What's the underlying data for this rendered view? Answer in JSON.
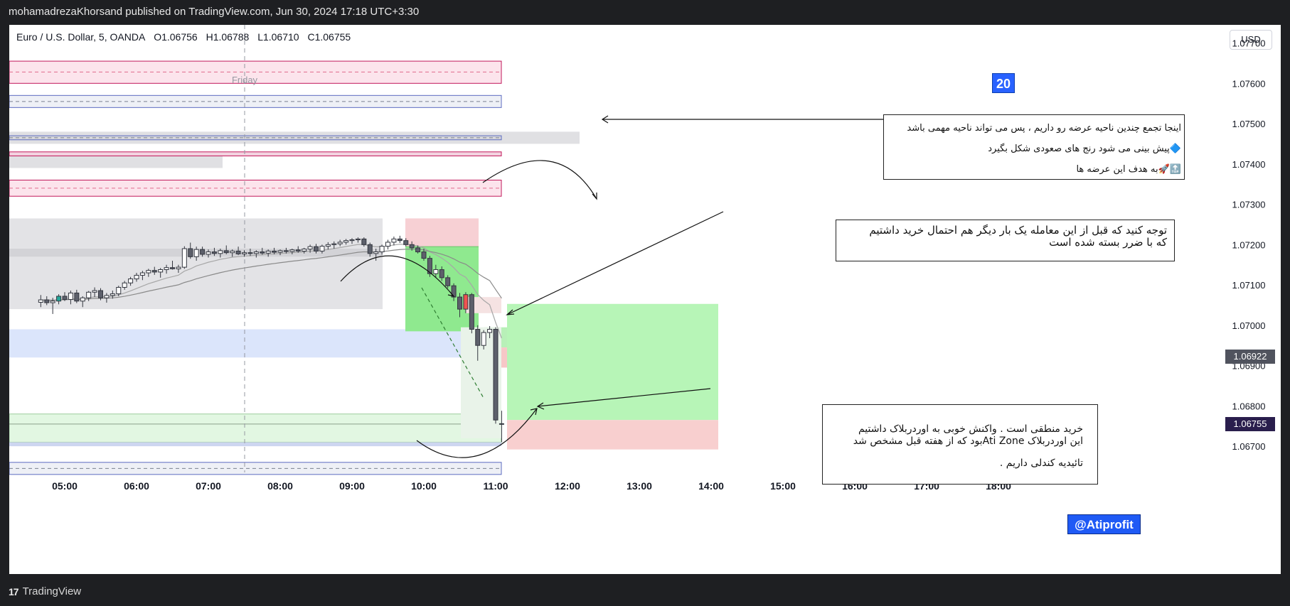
{
  "page": {
    "publish_info": "mohamadrezaKhorsand published on TradingView.com, Jun 30, 2024 17:18 UTC+3:30",
    "brand": "TradingView"
  },
  "symbol": {
    "name": "Euro / U.S. Dollar, 5, OANDA",
    "open": "O1.06756",
    "high": "H1.06788",
    "low": "L1.06710",
    "close": "C1.06755",
    "currency": "USD"
  },
  "annotations": {
    "day_label": "Friday",
    "badge_number": "20",
    "author_tag": "@Atiprofit",
    "note1": {
      "line1": "اینجا تجمع چندین ناحیه عرضه رو داریم ، پس می تواند ناحیه مهمی باشد",
      "line2": "🔷پیش بینی می شود رنج های صعودی شکل بگیرد",
      "line3": "🔝🚀به هدف این عرضه ها"
    },
    "note2": {
      "line1": "توجه کنید که  قبل از این معامله یک بار دیگر  هم احتمال خرید داشتیم",
      "line2": "که با ضرر  بسته شده است"
    },
    "note3": {
      "line1": "خرید منطقی است . واکنش خوبی به اوردربلاک داشتیم",
      "line2": "این اوردربلاک Ati Zoneبود که از  هفته قبل مشخص شد",
      "line3": "تائیدیه کندلی داریم ."
    }
  },
  "chart_data": {
    "type": "candlestick",
    "symbol": "EUR/USD",
    "timeframe": "5",
    "x_ticks": [
      "05:00",
      "06:00",
      "07:00",
      "08:00",
      "09:00",
      "10:00",
      "11:00",
      "12:00",
      "13:00",
      "14:00",
      "15:00",
      "16:00",
      "17:00",
      "18:00"
    ],
    "y_ticks": [
      "1.07700",
      "1.07600",
      "1.07500",
      "1.07400",
      "1.07300",
      "1.07200",
      "1.07100",
      "1.07000",
      "1.06900",
      "1.06800",
      "1.06700"
    ],
    "ylim": [
      1.06635,
      1.07745
    ],
    "last_price": "1.06755",
    "marked_price": "1.06922",
    "colors": {
      "up": "#ffffff",
      "down": "#5d606b",
      "up_special": "#26a69a",
      "down_special": "#ef5350",
      "long_profit": "#a5f2a5",
      "long_loss": "#f7c7c7"
    },
    "candles": [
      {
        "t": "04:40",
        "o": 1.07057,
        "h": 1.07075,
        "l": 1.07045,
        "c": 1.07063
      },
      {
        "t": "04:45",
        "o": 1.07063,
        "h": 1.07072,
        "l": 1.0705,
        "c": 1.07056
      },
      {
        "t": "04:50",
        "o": 1.07056,
        "h": 1.07068,
        "l": 1.07028,
        "c": 1.0706
      },
      {
        "t": "04:55",
        "o": 1.0706,
        "h": 1.07077,
        "l": 1.07052,
        "c": 1.07072
      },
      {
        "t": "05:00",
        "o": 1.07072,
        "h": 1.07082,
        "l": 1.0706,
        "c": 1.07064
      },
      {
        "t": "05:05",
        "o": 1.07064,
        "h": 1.07086,
        "l": 1.07052,
        "c": 1.0708
      },
      {
        "t": "05:10",
        "o": 1.0708,
        "h": 1.07088,
        "l": 1.07055,
        "c": 1.0706
      },
      {
        "t": "05:15",
        "o": 1.0706,
        "h": 1.07072,
        "l": 1.07045,
        "c": 1.07068
      },
      {
        "t": "05:20",
        "o": 1.07068,
        "h": 1.07085,
        "l": 1.0706,
        "c": 1.07082
      },
      {
        "t": "05:25",
        "o": 1.07082,
        "h": 1.07094,
        "l": 1.0707,
        "c": 1.07086
      },
      {
        "t": "05:30",
        "o": 1.07086,
        "h": 1.07092,
        "l": 1.07062,
        "c": 1.07068
      },
      {
        "t": "05:35",
        "o": 1.07068,
        "h": 1.0708,
        "l": 1.07056,
        "c": 1.07074
      },
      {
        "t": "05:40",
        "o": 1.07074,
        "h": 1.07086,
        "l": 1.07066,
        "c": 1.07078
      },
      {
        "t": "05:45",
        "o": 1.07078,
        "h": 1.07098,
        "l": 1.07072,
        "c": 1.07094
      },
      {
        "t": "05:50",
        "o": 1.07094,
        "h": 1.0711,
        "l": 1.07088,
        "c": 1.07105
      },
      {
        "t": "05:55",
        "o": 1.07105,
        "h": 1.0712,
        "l": 1.07098,
        "c": 1.07115
      },
      {
        "t": "06:00",
        "o": 1.07115,
        "h": 1.0713,
        "l": 1.07108,
        "c": 1.07124
      },
      {
        "t": "06:05",
        "o": 1.07124,
        "h": 1.07135,
        "l": 1.07112,
        "c": 1.0713
      },
      {
        "t": "06:10",
        "o": 1.0713,
        "h": 1.0714,
        "l": 1.0712,
        "c": 1.07136
      },
      {
        "t": "06:15",
        "o": 1.07136,
        "h": 1.07145,
        "l": 1.07125,
        "c": 1.07132
      },
      {
        "t": "06:20",
        "o": 1.07132,
        "h": 1.07142,
        "l": 1.07118,
        "c": 1.07138
      },
      {
        "t": "06:25",
        "o": 1.07138,
        "h": 1.0715,
        "l": 1.07128,
        "c": 1.07143
      },
      {
        "t": "06:30",
        "o": 1.07143,
        "h": 1.0716,
        "l": 1.07138,
        "c": 1.0714
      },
      {
        "t": "06:35",
        "o": 1.0714,
        "h": 1.0715,
        "l": 1.0713,
        "c": 1.07144
      },
      {
        "t": "06:40",
        "o": 1.07144,
        "h": 1.07196,
        "l": 1.0714,
        "c": 1.0719
      },
      {
        "t": "06:45",
        "o": 1.0719,
        "h": 1.07205,
        "l": 1.07165,
        "c": 1.0717
      },
      {
        "t": "06:50",
        "o": 1.0717,
        "h": 1.07195,
        "l": 1.0716,
        "c": 1.07188
      },
      {
        "t": "06:55",
        "o": 1.07188,
        "h": 1.07195,
        "l": 1.0717,
        "c": 1.07176
      },
      {
        "t": "07:00",
        "o": 1.07176,
        "h": 1.07188,
        "l": 1.07168,
        "c": 1.07182
      },
      {
        "t": "07:05",
        "o": 1.07182,
        "h": 1.07192,
        "l": 1.07172,
        "c": 1.07178
      },
      {
        "t": "07:10",
        "o": 1.07178,
        "h": 1.0719,
        "l": 1.07168,
        "c": 1.07185
      },
      {
        "t": "07:15",
        "o": 1.07185,
        "h": 1.07198,
        "l": 1.07176,
        "c": 1.0718
      },
      {
        "t": "07:20",
        "o": 1.0718,
        "h": 1.07188,
        "l": 1.0717,
        "c": 1.07184
      },
      {
        "t": "07:25",
        "o": 1.07184,
        "h": 1.07195,
        "l": 1.07174,
        "c": 1.07177
      },
      {
        "t": "07:30",
        "o": 1.07177,
        "h": 1.07186,
        "l": 1.0717,
        "c": 1.0718
      },
      {
        "t": "07:35",
        "o": 1.0718,
        "h": 1.0719,
        "l": 1.07172,
        "c": 1.07178
      },
      {
        "t": "07:40",
        "o": 1.07178,
        "h": 1.07186,
        "l": 1.07168,
        "c": 1.07182
      },
      {
        "t": "07:45",
        "o": 1.07182,
        "h": 1.07192,
        "l": 1.07175,
        "c": 1.07179
      },
      {
        "t": "07:50",
        "o": 1.07179,
        "h": 1.07188,
        "l": 1.0717,
        "c": 1.07184
      },
      {
        "t": "07:55",
        "o": 1.07184,
        "h": 1.07192,
        "l": 1.07176,
        "c": 1.07181
      },
      {
        "t": "08:00",
        "o": 1.07181,
        "h": 1.07188,
        "l": 1.07174,
        "c": 1.07185
      },
      {
        "t": "08:05",
        "o": 1.07185,
        "h": 1.07192,
        "l": 1.07178,
        "c": 1.07183
      },
      {
        "t": "08:10",
        "o": 1.07183,
        "h": 1.0719,
        "l": 1.07176,
        "c": 1.07187
      },
      {
        "t": "08:15",
        "o": 1.07187,
        "h": 1.07196,
        "l": 1.0718,
        "c": 1.07184
      },
      {
        "t": "08:20",
        "o": 1.07184,
        "h": 1.07192,
        "l": 1.07178,
        "c": 1.07189
      },
      {
        "t": "08:25",
        "o": 1.07189,
        "h": 1.072,
        "l": 1.0718,
        "c": 1.07195
      },
      {
        "t": "08:30",
        "o": 1.07195,
        "h": 1.07202,
        "l": 1.07178,
        "c": 1.07184
      },
      {
        "t": "08:35",
        "o": 1.07184,
        "h": 1.072,
        "l": 1.07178,
        "c": 1.07196
      },
      {
        "t": "08:40",
        "o": 1.07196,
        "h": 1.07206,
        "l": 1.07188,
        "c": 1.072
      },
      {
        "t": "08:45",
        "o": 1.072,
        "h": 1.07208,
        "l": 1.0719,
        "c": 1.07202
      },
      {
        "t": "08:50",
        "o": 1.07202,
        "h": 1.07212,
        "l": 1.07196,
        "c": 1.07206
      },
      {
        "t": "08:55",
        "o": 1.07206,
        "h": 1.07214,
        "l": 1.072,
        "c": 1.0721
      },
      {
        "t": "09:00",
        "o": 1.0721,
        "h": 1.07216,
        "l": 1.07202,
        "c": 1.07212
      },
      {
        "t": "09:05",
        "o": 1.07212,
        "h": 1.07218,
        "l": 1.07205,
        "c": 1.07214
      },
      {
        "t": "09:10",
        "o": 1.07214,
        "h": 1.07218,
        "l": 1.07195,
        "c": 1.072
      },
      {
        "t": "09:15",
        "o": 1.072,
        "h": 1.07205,
        "l": 1.0717,
        "c": 1.07178
      },
      {
        "t": "09:20",
        "o": 1.07178,
        "h": 1.0719,
        "l": 1.0716,
        "c": 1.07182
      },
      {
        "t": "09:25",
        "o": 1.07182,
        "h": 1.072,
        "l": 1.07175,
        "c": 1.07196
      },
      {
        "t": "09:30",
        "o": 1.07196,
        "h": 1.07212,
        "l": 1.07188,
        "c": 1.07206
      },
      {
        "t": "09:35",
        "o": 1.07206,
        "h": 1.0722,
        "l": 1.07198,
        "c": 1.07214
      },
      {
        "t": "09:40",
        "o": 1.07214,
        "h": 1.07222,
        "l": 1.07204,
        "c": 1.0721
      },
      {
        "t": "09:45",
        "o": 1.0721,
        "h": 1.07216,
        "l": 1.07196,
        "c": 1.072
      },
      {
        "t": "09:50",
        "o": 1.072,
        "h": 1.07208,
        "l": 1.07185,
        "c": 1.07192
      },
      {
        "t": "09:55",
        "o": 1.07192,
        "h": 1.07198,
        "l": 1.07178,
        "c": 1.07182
      },
      {
        "t": "10:00",
        "o": 1.07182,
        "h": 1.0719,
        "l": 1.0716,
        "c": 1.07166
      },
      {
        "t": "10:05",
        "o": 1.07166,
        "h": 1.07172,
        "l": 1.0712,
        "c": 1.07128
      },
      {
        "t": "10:10",
        "o": 1.07128,
        "h": 1.0715,
        "l": 1.07118,
        "c": 1.07138
      },
      {
        "t": "10:15",
        "o": 1.07138,
        "h": 1.07146,
        "l": 1.0711,
        "c": 1.07118
      },
      {
        "t": "10:20",
        "o": 1.07118,
        "h": 1.07124,
        "l": 1.07092,
        "c": 1.07098
      },
      {
        "t": "10:25",
        "o": 1.07098,
        "h": 1.07104,
        "l": 1.0706,
        "c": 1.0707
      },
      {
        "t": "10:30",
        "o": 1.0707,
        "h": 1.0708,
        "l": 1.0702,
        "c": 1.0704
      },
      {
        "t": "10:35",
        "o": 1.0704,
        "h": 1.07082,
        "l": 1.0703,
        "c": 1.07076
      },
      {
        "t": "10:40",
        "o": 1.07076,
        "h": 1.0708,
        "l": 1.0698,
        "c": 1.0699
      },
      {
        "t": "10:45",
        "o": 1.0699,
        "h": 1.07,
        "l": 1.06912,
        "c": 1.0695
      },
      {
        "t": "10:50",
        "o": 1.0695,
        "h": 1.06988,
        "l": 1.0694,
        "c": 1.06982
      },
      {
        "t": "10:55",
        "o": 1.06982,
        "h": 1.06998,
        "l": 1.06968,
        "c": 1.0699
      },
      {
        "t": "11:00",
        "o": 1.0699,
        "h": 1.06995,
        "l": 1.06756,
        "c": 1.06765
      },
      {
        "t": "11:05",
        "o": 1.06756,
        "h": 1.06788,
        "l": 1.0671,
        "c": 1.06755
      }
    ]
  }
}
